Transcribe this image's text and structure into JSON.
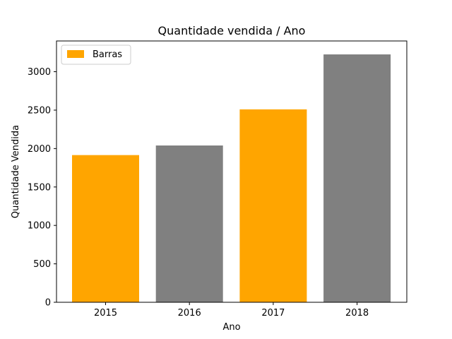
{
  "chart_data": {
    "type": "bar",
    "title": "Quantidade vendida / Ano",
    "xlabel": "Ano",
    "ylabel": "Quantidade Vendida",
    "categories": [
      "2015",
      "2016",
      "2017",
      "2018"
    ],
    "values": [
      1915,
      2040,
      2510,
      3225
    ],
    "bar_colors": [
      "#FFA500",
      "#808080",
      "#FFA500",
      "#808080"
    ],
    "ylim": [
      0,
      3400
    ],
    "yticks": [
      0,
      500,
      1000,
      1500,
      2000,
      2500,
      3000
    ],
    "grid": false,
    "legend": {
      "position": "top-left",
      "entries": [
        {
          "label": "Barras",
          "color": "#FFA500"
        }
      ]
    }
  }
}
